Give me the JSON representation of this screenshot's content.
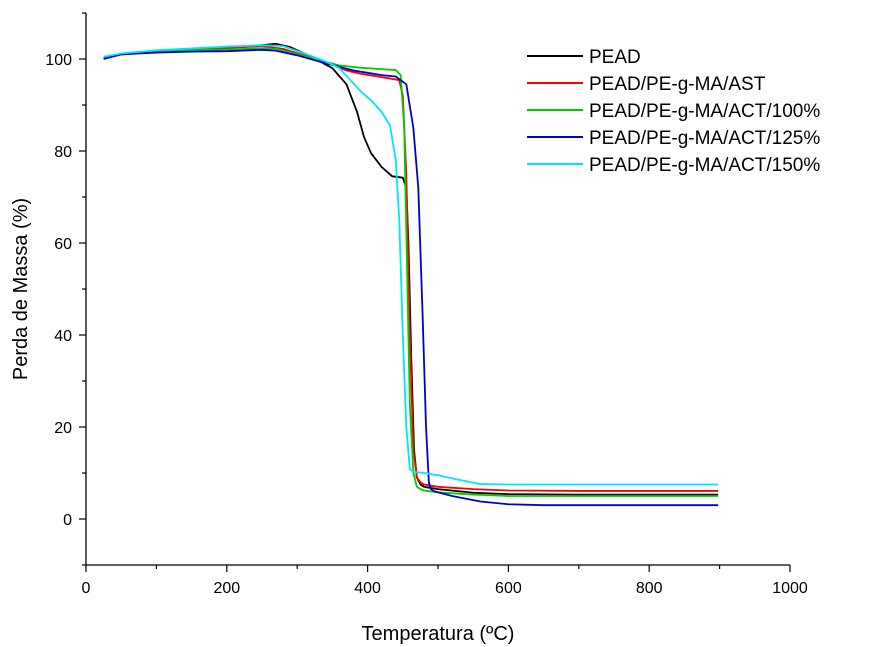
{
  "chart_data": {
    "type": "line",
    "title": "",
    "xlabel": "Temperatura (ºC)",
    "ylabel": "Perda de Massa (%)",
    "xlim": [
      0,
      1000
    ],
    "ylim": [
      -10,
      110
    ],
    "xticks": [
      0,
      200,
      400,
      600,
      800,
      1000
    ],
    "yticks": [
      0,
      20,
      40,
      60,
      80,
      100
    ],
    "grid": false,
    "legend_position": "top-right",
    "series": [
      {
        "name": "PEAD",
        "color": "#000000",
        "x": [
          25,
          50,
          100,
          150,
          200,
          250,
          270,
          290,
          320,
          350,
          370,
          385,
          395,
          405,
          420,
          435,
          450,
          455,
          458,
          462,
          466,
          470,
          475,
          480,
          500,
          550,
          600,
          700,
          800,
          898
        ],
        "y": [
          100.2,
          101.0,
          101.6,
          102.0,
          102.5,
          103.0,
          103.3,
          102.6,
          100.5,
          98.0,
          94.5,
          88.5,
          83.0,
          79.5,
          76.5,
          74.5,
          74.2,
          72.0,
          60.0,
          35.0,
          15.0,
          9.0,
          7.5,
          7.0,
          6.5,
          5.7,
          5.4,
          5.3,
          5.3,
          5.3
        ]
      },
      {
        "name": "PEAD/PE-g-MA/AST",
        "color": "#ff0000",
        "x": [
          25,
          50,
          100,
          150,
          200,
          250,
          280,
          320,
          350,
          370,
          390,
          410,
          430,
          445,
          450,
          455,
          460,
          465,
          470,
          475,
          480,
          500,
          550,
          600,
          700,
          800,
          898
        ],
        "y": [
          100.2,
          101.0,
          101.6,
          102.0,
          102.4,
          102.8,
          102.2,
          100.3,
          98.8,
          97.5,
          96.8,
          96.3,
          95.8,
          95.4,
          92.0,
          75.0,
          40.0,
          15.0,
          9.0,
          8.0,
          7.5,
          7.0,
          6.5,
          6.2,
          6.1,
          6.1,
          6.1
        ]
      },
      {
        "name": "PEAD/PE-g-MA/ACT/100%",
        "color": "#00cc00",
        "x": [
          25,
          50,
          100,
          150,
          200,
          250,
          270,
          300,
          330,
          360,
          390,
          420,
          440,
          447,
          452,
          456,
          460,
          465,
          470,
          475,
          480,
          500,
          550,
          600,
          700,
          800,
          898
        ],
        "y": [
          100.2,
          101.0,
          101.6,
          101.9,
          102.1,
          102.3,
          102.2,
          101.0,
          99.8,
          98.6,
          98.1,
          97.8,
          97.6,
          96.5,
          85.0,
          55.0,
          25.0,
          10.0,
          7.0,
          6.5,
          6.2,
          5.8,
          5.3,
          5.0,
          5.0,
          5.0,
          5.0
        ]
      },
      {
        "name": "PEAD/PE-g-MA/ACT/125%",
        "color": "#0000cc",
        "x": [
          25,
          50,
          100,
          150,
          200,
          250,
          270,
          300,
          330,
          360,
          380,
          400,
          420,
          440,
          455,
          465,
          472,
          478,
          483,
          487,
          490,
          495,
          520,
          560,
          600,
          650,
          700,
          800,
          898
        ],
        "y": [
          100.0,
          101.0,
          101.4,
          101.6,
          101.7,
          102.0,
          101.8,
          100.8,
          99.5,
          98.3,
          97.5,
          97.0,
          96.5,
          96.2,
          94.5,
          85.0,
          72.0,
          45.0,
          20.0,
          8.0,
          6.5,
          6.0,
          5.0,
          3.8,
          3.2,
          3.0,
          3.0,
          3.0,
          3.0
        ]
      },
      {
        "name": "PEAD/PE-g-MA/ACT/150%",
        "color": "#00e5ff",
        "x": [
          25,
          50,
          100,
          150,
          200,
          250,
          280,
          310,
          340,
          360,
          375,
          390,
          405,
          420,
          432,
          440,
          445,
          450,
          455,
          460,
          465,
          480,
          500,
          530,
          560,
          600,
          700,
          800,
          898
        ],
        "y": [
          100.5,
          101.2,
          101.9,
          102.3,
          102.7,
          103.0,
          102.8,
          101.2,
          99.5,
          98.0,
          95.5,
          93.0,
          91.0,
          88.5,
          85.5,
          78.0,
          65.0,
          40.0,
          20.0,
          10.8,
          10.3,
          10.0,
          9.5,
          8.5,
          7.6,
          7.5,
          7.5,
          7.5,
          7.5
        ]
      }
    ]
  }
}
